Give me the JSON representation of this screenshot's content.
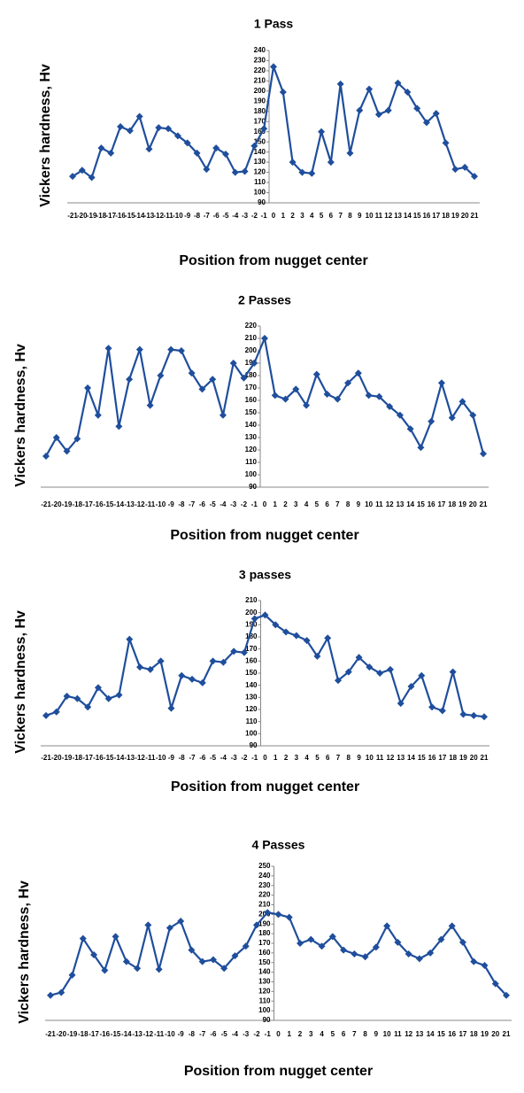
{
  "chart_data": [
    {
      "type": "line",
      "title": "1 Pass",
      "x_label": "Position from nugget center",
      "y_label": "Vickers hardness, Hv",
      "categories": [
        "-21",
        "-20",
        "-19",
        "-18",
        "-17",
        "-16",
        "-15",
        "-14",
        "-13",
        "-12",
        "-11",
        "-10",
        "-9",
        "-8",
        "-7",
        "-6",
        "-5",
        "-4",
        "-3",
        "-2",
        "-1",
        "0",
        "1",
        "2",
        "3",
        "4",
        "5",
        "6",
        "7",
        "8",
        "9",
        "10",
        "11",
        "12",
        "13",
        "14",
        "15",
        "16",
        "17",
        "18",
        "19",
        "20",
        "21"
      ],
      "series": [
        {
          "color": "#1f4e9c",
          "values": [
            116,
            122,
            115,
            144,
            139,
            165,
            161,
            175,
            143,
            164,
            163,
            156,
            149,
            139,
            123,
            144,
            138,
            120,
            121,
            146,
            163,
            224,
            199,
            130,
            120,
            119,
            160,
            130,
            207,
            139,
            181,
            202,
            177,
            181,
            208,
            199,
            183,
            169,
            178,
            149,
            123,
            125,
            116
          ]
        }
      ],
      "ylim": [
        90,
        240
      ],
      "yticks": [
        90,
        100,
        110,
        120,
        130,
        140,
        150,
        160,
        170,
        180,
        190,
        200,
        210,
        220,
        230,
        240
      ],
      "grid": false
    },
    {
      "type": "line",
      "title": "2 Passes",
      "x_label": "Position from nugget center",
      "y_label": "Vickers hardness, Hv",
      "categories": [
        "-21",
        "-20",
        "-19",
        "-18",
        "-17",
        "-16",
        "-15",
        "-14",
        "-13",
        "-12",
        "-11",
        "-10",
        "-9",
        "-8",
        "-7",
        "-6",
        "-5",
        "-4",
        "-3",
        "-2",
        "-1",
        "0",
        "1",
        "2",
        "3",
        "4",
        "5",
        "6",
        "7",
        "8",
        "9",
        "10",
        "11",
        "12",
        "13",
        "14",
        "15",
        "16",
        "17",
        "18",
        "19",
        "20",
        "21"
      ],
      "series": [
        {
          "color": "#1f4e9c",
          "values": [
            115,
            130,
            119,
            129,
            170,
            148,
            202,
            139,
            177,
            201,
            156,
            180,
            201,
            200,
            182,
            169,
            177,
            148,
            190,
            178,
            190,
            210,
            164,
            161,
            169,
            156,
            181,
            165,
            161,
            174,
            182,
            164,
            163,
            155,
            148,
            137,
            122,
            143,
            174,
            146,
            159,
            148,
            117
          ]
        }
      ],
      "ylim": [
        90,
        220
      ],
      "yticks": [
        90,
        100,
        110,
        120,
        130,
        140,
        150,
        160,
        170,
        180,
        190,
        200,
        210,
        220
      ],
      "grid": false
    },
    {
      "type": "line",
      "title": "3 passes",
      "x_label": "Position from nugget center",
      "y_label": "Vickers hardness, Hv",
      "categories": [
        "-21",
        "-20",
        "-19",
        "-18",
        "-17",
        "-16",
        "-15",
        "-14",
        "-13",
        "-12",
        "-11",
        "-10",
        "-9",
        "-8",
        "-7",
        "-6",
        "-5",
        "-4",
        "-3",
        "-2",
        "-1",
        "0",
        "1",
        "2",
        "3",
        "4",
        "5",
        "6",
        "7",
        "8",
        "9",
        "10",
        "11",
        "12",
        "13",
        "14",
        "15",
        "16",
        "17",
        "18",
        "19",
        "20",
        "21"
      ],
      "series": [
        {
          "color": "#1f4e9c",
          "values": [
            115,
            118,
            131,
            129,
            122,
            138,
            129,
            132,
            178,
            155,
            153,
            160,
            121,
            148,
            145,
            142,
            160,
            159,
            168,
            167,
            195,
            198,
            190,
            184,
            181,
            177,
            164,
            179,
            144,
            151,
            163,
            155,
            150,
            153,
            125,
            139,
            148,
            122,
            119,
            151,
            116,
            115,
            114
          ]
        }
      ],
      "ylim": [
        90,
        210
      ],
      "yticks": [
        90,
        100,
        110,
        120,
        130,
        140,
        150,
        160,
        170,
        180,
        190,
        200,
        210
      ],
      "grid": false
    },
    {
      "type": "line",
      "title": "4 Passes",
      "x_label": "Position from nugget center",
      "y_label": "Vickers hardness, Hv",
      "categories": [
        "-21",
        "-20",
        "-19",
        "-18",
        "-17",
        "-16",
        "-15",
        "-14",
        "-13",
        "-12",
        "-11",
        "-10",
        "-9",
        "-8",
        "-7",
        "-6",
        "-5",
        "-4",
        "-3",
        "-2",
        "-1",
        "0",
        "1",
        "2",
        "3",
        "4",
        "5",
        "6",
        "7",
        "8",
        "9",
        "10",
        "11",
        "12",
        "13",
        "14",
        "15",
        "16",
        "17",
        "18",
        "19",
        "20",
        "21"
      ],
      "series": [
        {
          "color": "#1f4e9c",
          "values": [
            116,
            119,
            137,
            175,
            158,
            142,
            177,
            151,
            144,
            189,
            143,
            186,
            193,
            163,
            151,
            153,
            144,
            157,
            167,
            189,
            202,
            200,
            197,
            170,
            174,
            167,
            177,
            163,
            159,
            156,
            166,
            188,
            171,
            159,
            154,
            160,
            174,
            188,
            171,
            151,
            147,
            128,
            116
          ]
        }
      ],
      "ylim": [
        90,
        250
      ],
      "yticks": [
        90,
        100,
        110,
        120,
        130,
        140,
        150,
        160,
        170,
        180,
        190,
        200,
        210,
        220,
        230,
        240,
        250
      ],
      "grid": false
    }
  ]
}
